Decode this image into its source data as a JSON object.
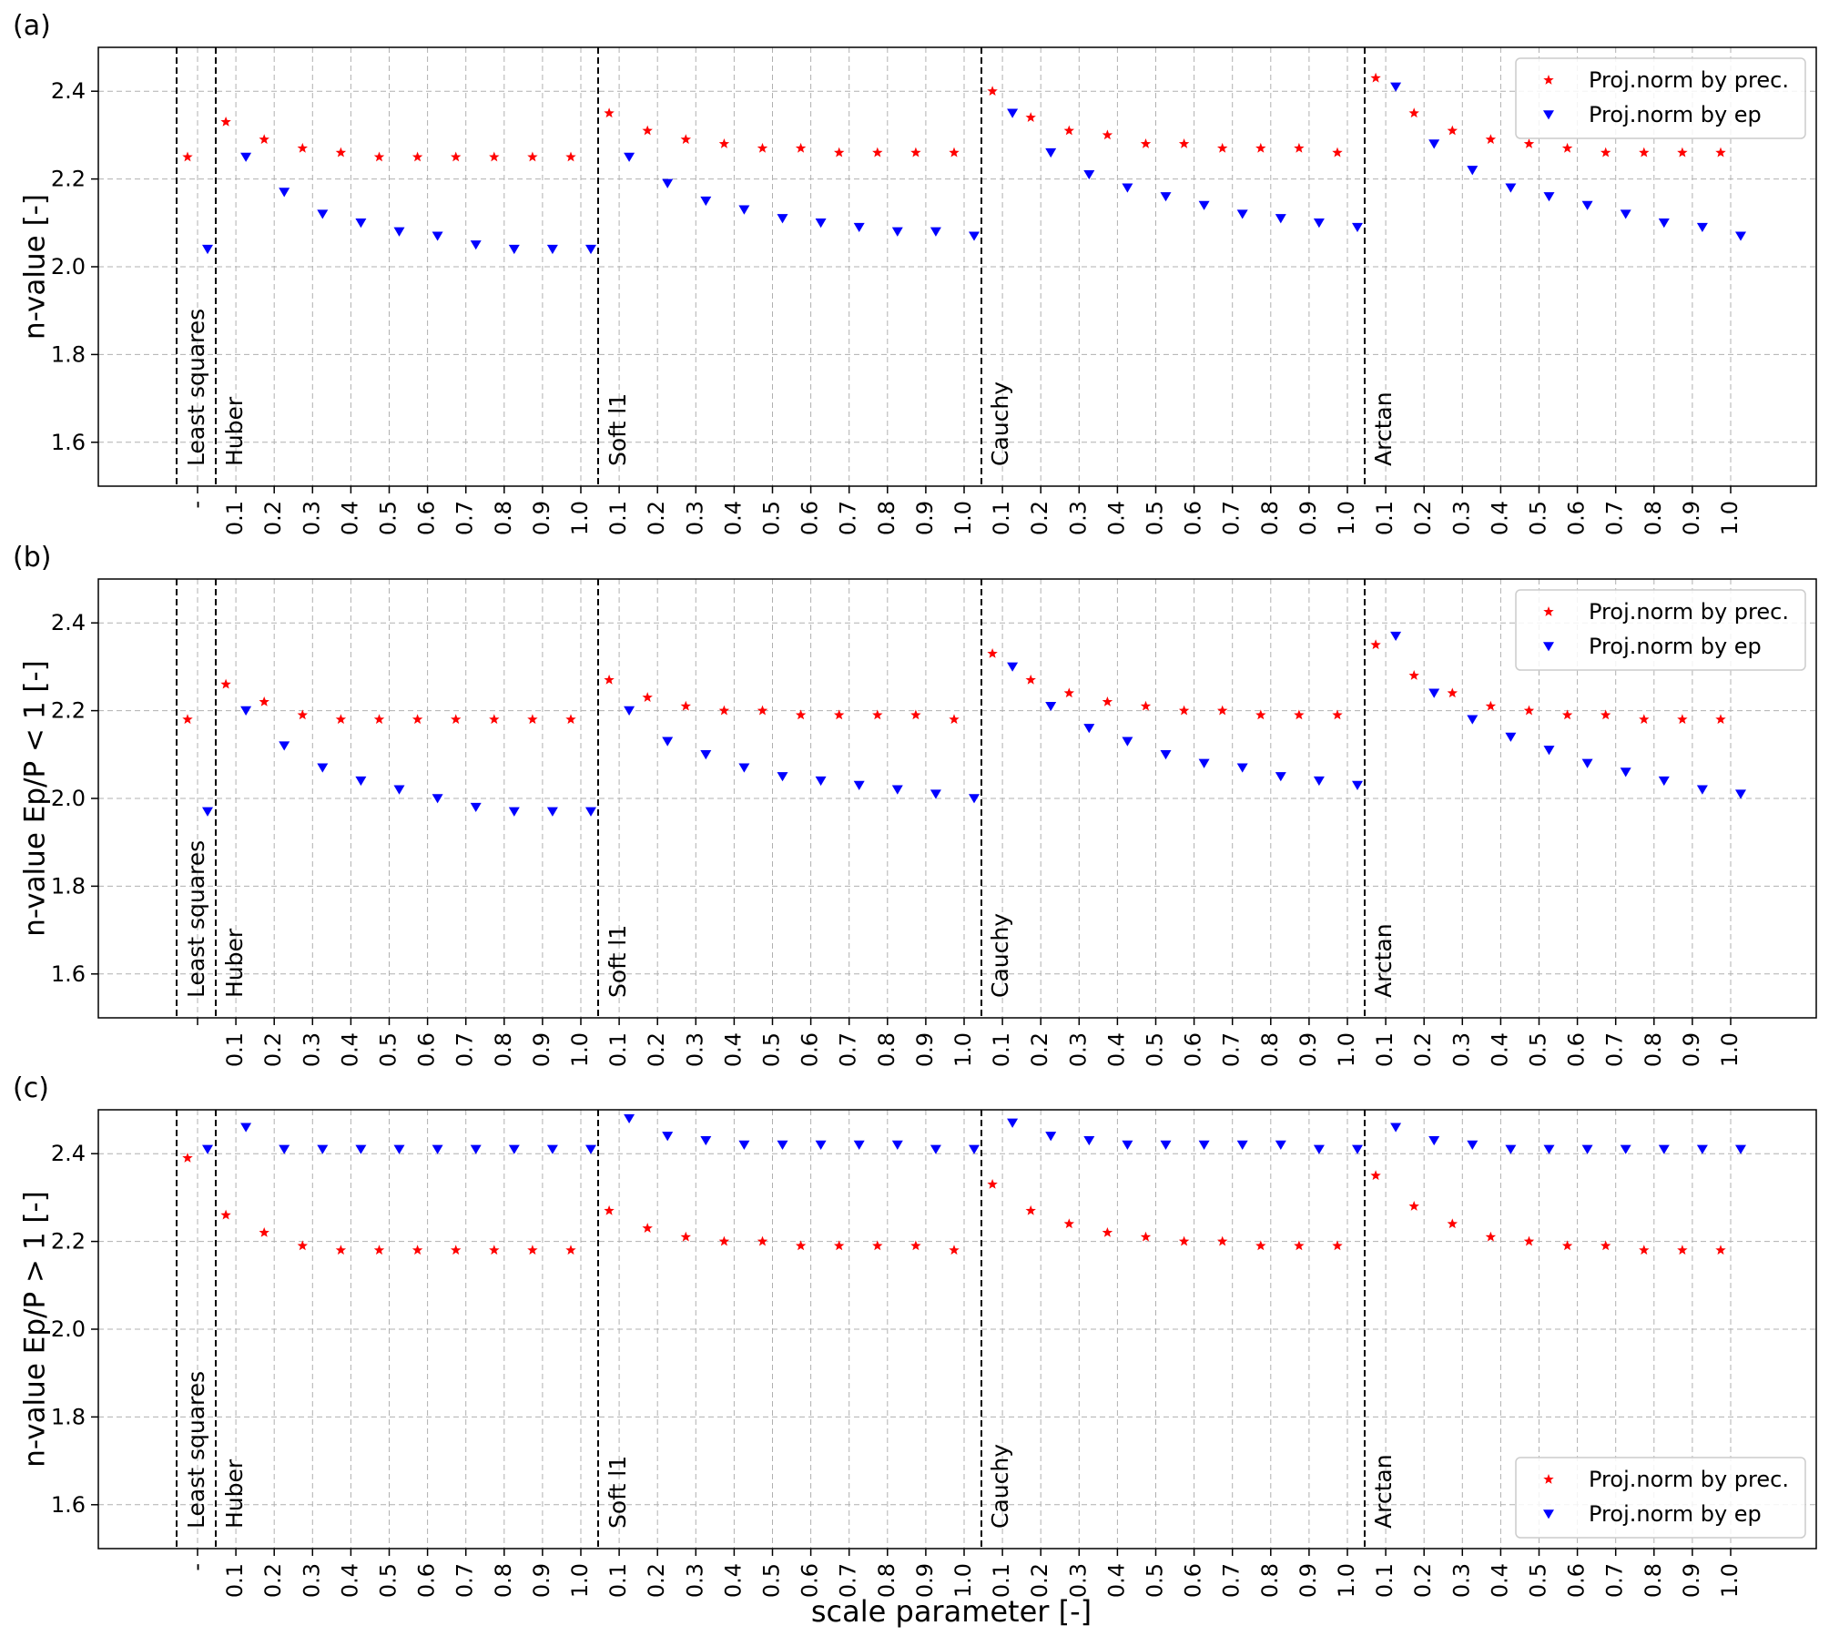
{
  "figure": {
    "xlabel": "scale parameter [-]"
  },
  "legend_labels": [
    "Proj.norm by prec.",
    "Proj.norm by ep"
  ],
  "colors": {
    "prec": "#ff0000",
    "ep": "#0000ff",
    "grid": "#b0b0b0",
    "divider": "#000000"
  },
  "chart_data": [
    {
      "type": "scatter",
      "panel_label": "(a)",
      "ylabel": "n-value [-]",
      "ylim": [
        1.5,
        2.5
      ],
      "yticks": [
        1.6,
        1.8,
        2.0,
        2.2,
        2.4
      ],
      "grid": true,
      "legend": "top-right",
      "categories": [
        "-",
        "0.1",
        "0.2",
        "0.3",
        "0.4",
        "0.5",
        "0.6",
        "0.7",
        "0.8",
        "0.9",
        "1.0",
        "0.1",
        "0.2",
        "0.3",
        "0.4",
        "0.5",
        "0.6",
        "0.7",
        "0.8",
        "0.9",
        "1.0",
        "0.1",
        "0.2",
        "0.3",
        "0.4",
        "0.5",
        "0.6",
        "0.7",
        "0.8",
        "0.9",
        "1.0",
        "0.1",
        "0.2",
        "0.3",
        "0.4",
        "0.5",
        "0.6",
        "0.7",
        "0.8",
        "0.9",
        "1.0"
      ],
      "groups": [
        "Least squares",
        "Huber",
        "Soft l1",
        "Cauchy",
        "Arctan"
      ],
      "series": [
        {
          "name": "Proj.norm by prec.",
          "marker": "star",
          "values": [
            2.25,
            2.33,
            2.29,
            2.27,
            2.26,
            2.25,
            2.25,
            2.25,
            2.25,
            2.25,
            2.25,
            2.35,
            2.31,
            2.29,
            2.28,
            2.27,
            2.27,
            2.26,
            2.26,
            2.26,
            2.26,
            2.4,
            2.34,
            2.31,
            2.3,
            2.28,
            2.28,
            2.27,
            2.27,
            2.27,
            2.26,
            2.43,
            2.35,
            2.31,
            2.29,
            2.28,
            2.27,
            2.26,
            2.26,
            2.26,
            2.26
          ]
        },
        {
          "name": "Proj.norm by ep",
          "marker": "triangle_down",
          "values": [
            2.04,
            2.25,
            2.17,
            2.12,
            2.1,
            2.08,
            2.07,
            2.05,
            2.04,
            2.04,
            2.04,
            2.25,
            2.19,
            2.15,
            2.13,
            2.11,
            2.1,
            2.09,
            2.08,
            2.08,
            2.07,
            2.35,
            2.26,
            2.21,
            2.18,
            2.16,
            2.14,
            2.12,
            2.11,
            2.1,
            2.09,
            2.41,
            2.28,
            2.22,
            2.18,
            2.16,
            2.14,
            2.12,
            2.1,
            2.09,
            2.07
          ]
        }
      ]
    },
    {
      "type": "scatter",
      "panel_label": "(b)",
      "ylabel": "n-value Ep/P < 1 [-]",
      "ylim": [
        1.5,
        2.5
      ],
      "yticks": [
        1.6,
        1.8,
        2.0,
        2.2,
        2.4
      ],
      "grid": true,
      "legend": "top-right",
      "categories": [
        "",
        "0.1",
        "0.2",
        "0.3",
        "0.4",
        "0.5",
        "0.6",
        "0.7",
        "0.8",
        "0.9",
        "1.0",
        "0.1",
        "0.2",
        "0.3",
        "0.4",
        "0.5",
        "0.6",
        "0.7",
        "0.8",
        "0.9",
        "1.0",
        "0.1",
        "0.2",
        "0.3",
        "0.4",
        "0.5",
        "0.6",
        "0.7",
        "0.8",
        "0.9",
        "1.0",
        "0.1",
        "0.2",
        "0.3",
        "0.4",
        "0.5",
        "0.6",
        "0.7",
        "0.8",
        "0.9",
        "1.0"
      ],
      "groups": [
        "Least squares",
        "Huber",
        "Soft l1",
        "Cauchy",
        "Arctan"
      ],
      "series": [
        {
          "name": "Proj.norm by prec.",
          "marker": "star",
          "values": [
            2.18,
            2.26,
            2.22,
            2.19,
            2.18,
            2.18,
            2.18,
            2.18,
            2.18,
            2.18,
            2.18,
            2.27,
            2.23,
            2.21,
            2.2,
            2.2,
            2.19,
            2.19,
            2.19,
            2.19,
            2.18,
            2.33,
            2.27,
            2.24,
            2.22,
            2.21,
            2.2,
            2.2,
            2.19,
            2.19,
            2.19,
            2.35,
            2.28,
            2.24,
            2.21,
            2.2,
            2.19,
            2.19,
            2.18,
            2.18,
            2.18
          ]
        },
        {
          "name": "Proj.norm by ep",
          "marker": "triangle_down",
          "values": [
            1.97,
            2.2,
            2.12,
            2.07,
            2.04,
            2.02,
            2.0,
            1.98,
            1.97,
            1.97,
            1.97,
            2.2,
            2.13,
            2.1,
            2.07,
            2.05,
            2.04,
            2.03,
            2.02,
            2.01,
            2.0,
            2.3,
            2.21,
            2.16,
            2.13,
            2.1,
            2.08,
            2.07,
            2.05,
            2.04,
            2.03,
            2.37,
            2.24,
            2.18,
            2.14,
            2.11,
            2.08,
            2.06,
            2.04,
            2.02,
            2.01
          ]
        }
      ]
    },
    {
      "type": "scatter",
      "panel_label": "(c)",
      "ylabel": "n-value Ep/P > 1 [-]",
      "ylim": [
        1.5,
        2.5
      ],
      "yticks": [
        1.6,
        1.8,
        2.0,
        2.2,
        2.4
      ],
      "grid": true,
      "legend": "bottom-right",
      "categories": [
        "-",
        "0.1",
        "0.2",
        "0.3",
        "0.4",
        "0.5",
        "0.6",
        "0.7",
        "0.8",
        "0.9",
        "1.0",
        "0.1",
        "0.2",
        "0.3",
        "0.4",
        "0.5",
        "0.6",
        "0.7",
        "0.8",
        "0.9",
        "1.0",
        "0.1",
        "0.2",
        "0.3",
        "0.4",
        "0.5",
        "0.6",
        "0.7",
        "0.8",
        "0.9",
        "1.0",
        "0.1",
        "0.2",
        "0.3",
        "0.4",
        "0.5",
        "0.6",
        "0.7",
        "0.8",
        "0.9",
        "1.0"
      ],
      "groups": [
        "Least squares",
        "Huber",
        "Soft l1",
        "Cauchy",
        "Arctan"
      ],
      "series": [
        {
          "name": "Proj.norm by prec.",
          "marker": "star",
          "values": [
            2.39,
            2.26,
            2.22,
            2.19,
            2.18,
            2.18,
            2.18,
            2.18,
            2.18,
            2.18,
            2.18,
            2.27,
            2.23,
            2.21,
            2.2,
            2.2,
            2.19,
            2.19,
            2.19,
            2.19,
            2.18,
            2.33,
            2.27,
            2.24,
            2.22,
            2.21,
            2.2,
            2.2,
            2.19,
            2.19,
            2.19,
            2.35,
            2.28,
            2.24,
            2.21,
            2.2,
            2.19,
            2.19,
            2.18,
            2.18,
            2.18
          ]
        },
        {
          "name": "Proj.norm by ep",
          "marker": "triangle_down",
          "values": [
            2.41,
            2.46,
            2.41,
            2.41,
            2.41,
            2.41,
            2.41,
            2.41,
            2.41,
            2.41,
            2.41,
            2.48,
            2.44,
            2.43,
            2.42,
            2.42,
            2.42,
            2.42,
            2.42,
            2.41,
            2.41,
            2.47,
            2.44,
            2.43,
            2.42,
            2.42,
            2.42,
            2.42,
            2.42,
            2.41,
            2.41,
            2.46,
            2.43,
            2.42,
            2.41,
            2.41,
            2.41,
            2.41,
            2.41,
            2.41,
            2.41
          ]
        }
      ]
    }
  ]
}
